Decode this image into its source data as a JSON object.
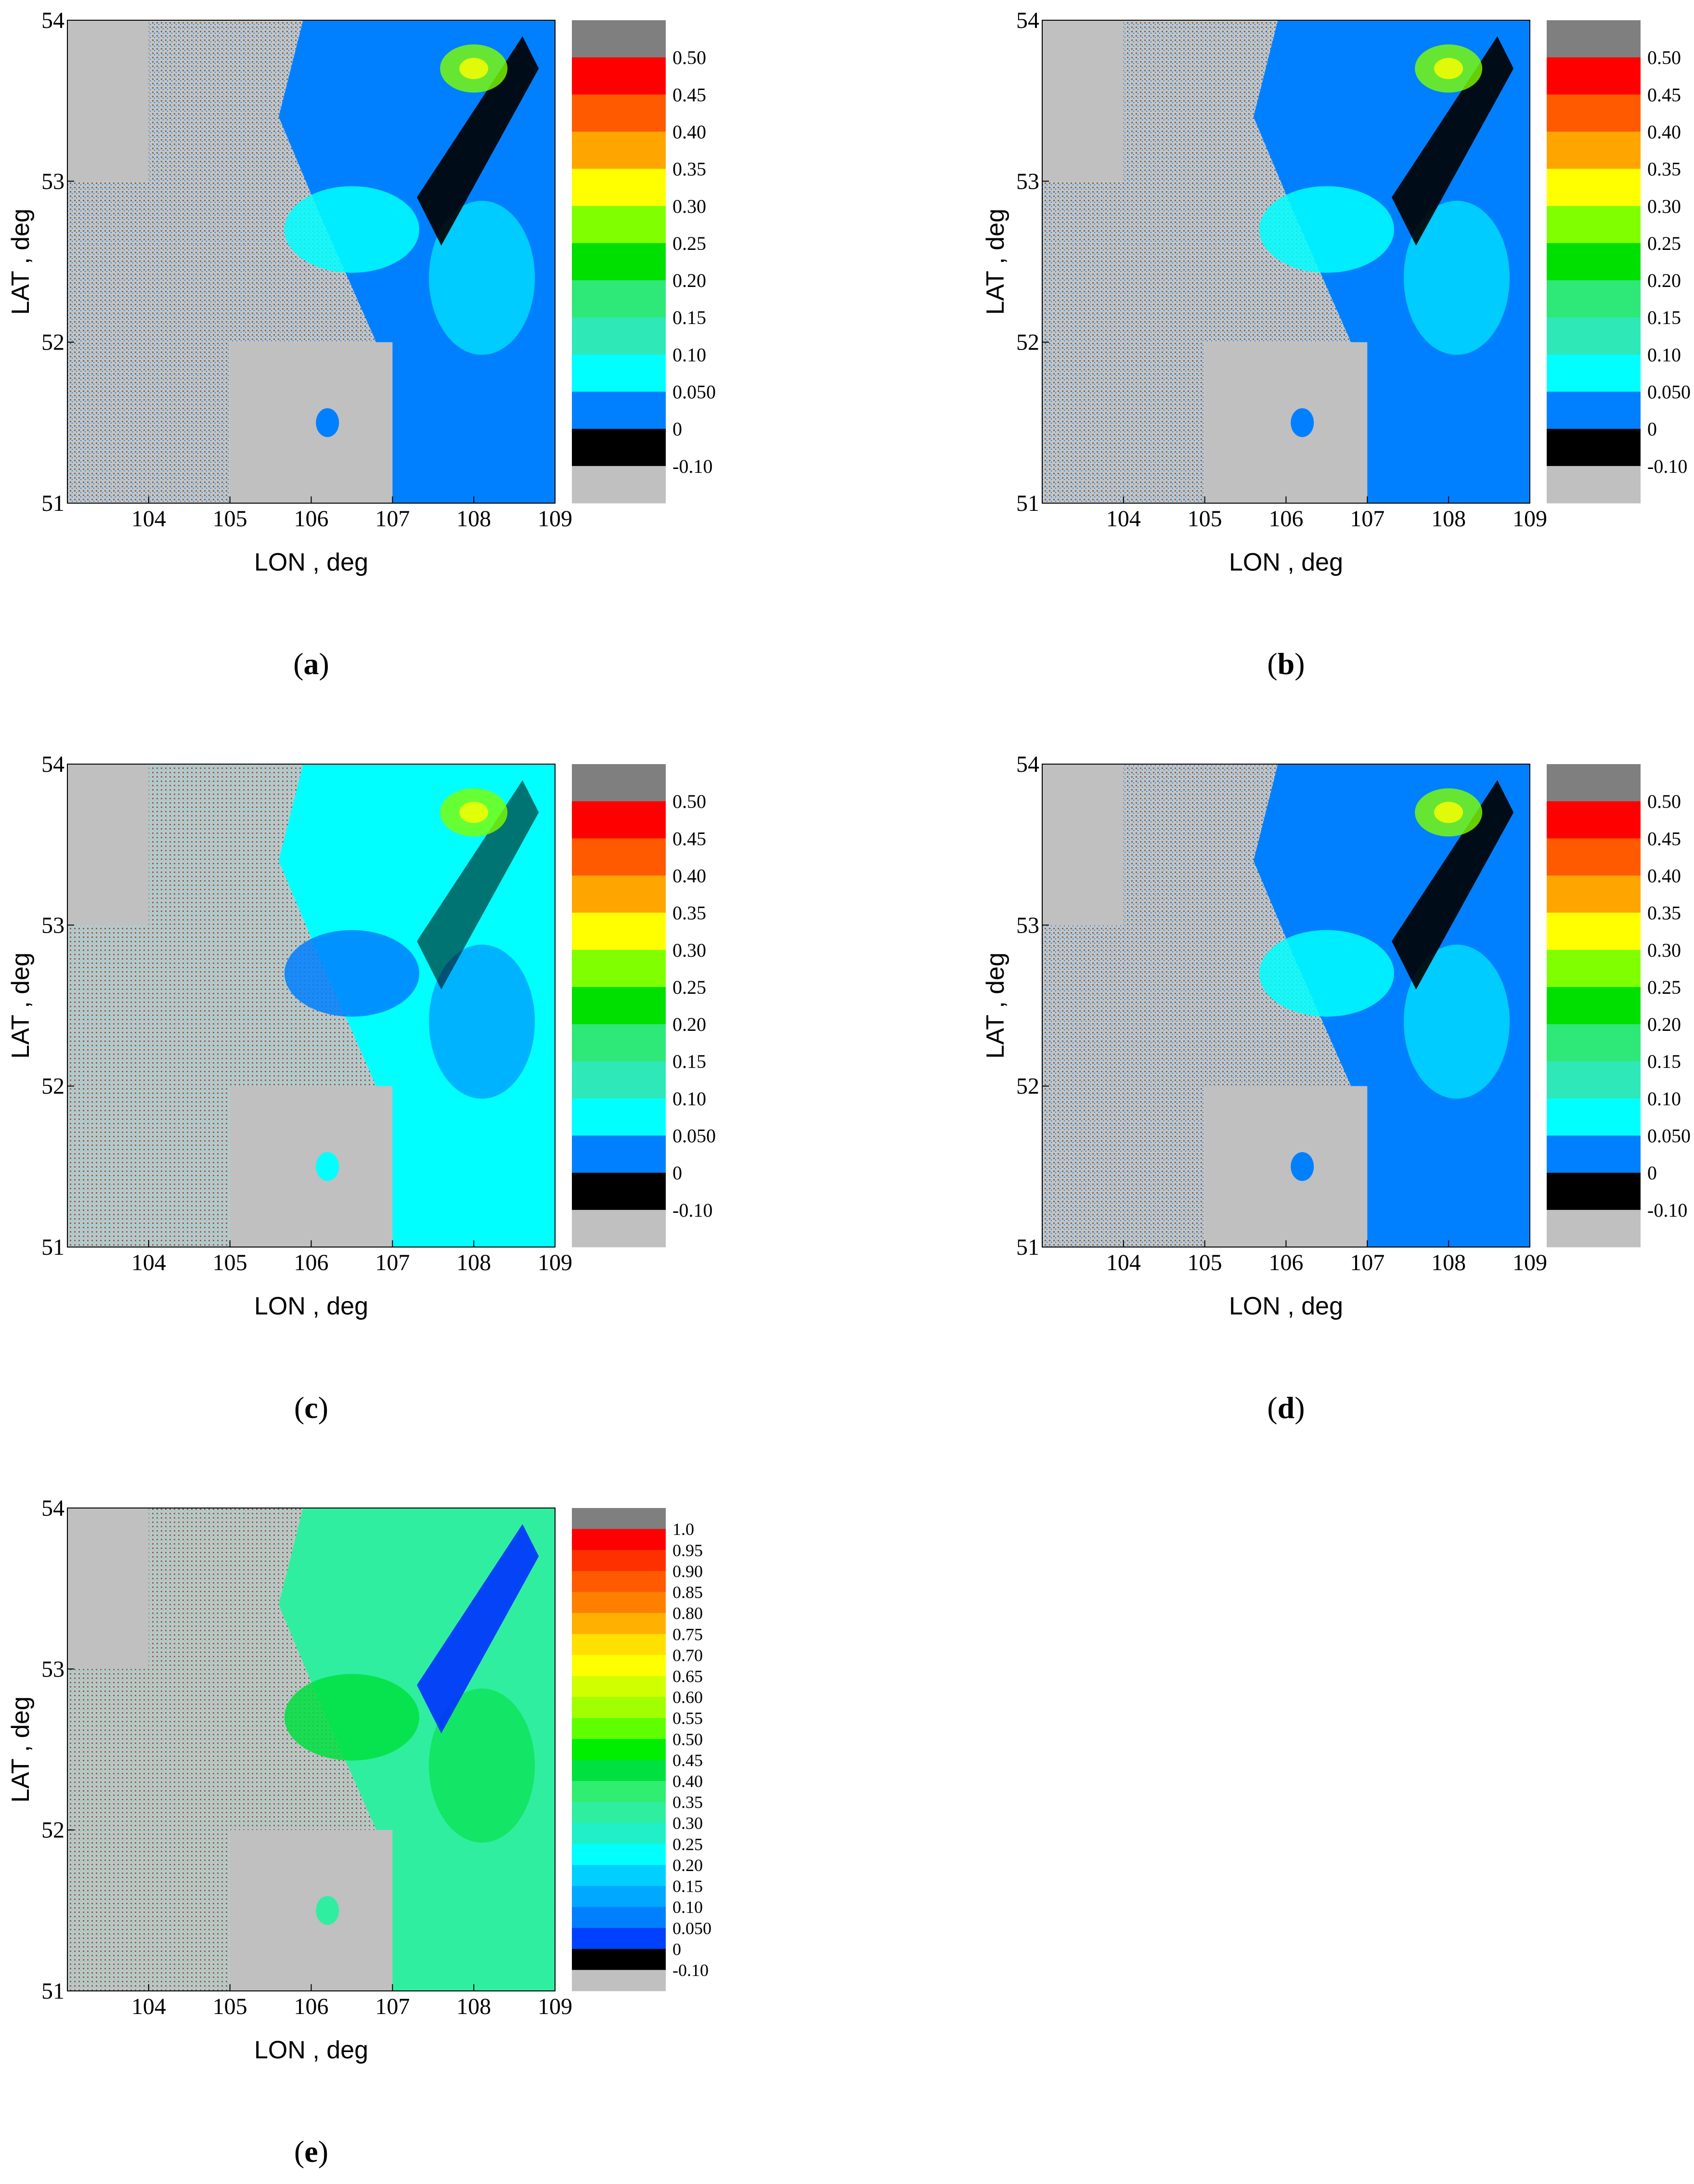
{
  "panels": [
    {
      "id": "a",
      "caption": "a",
      "xlabel": "LON , deg",
      "ylabel": "LAT , deg",
      "legend": [
        "0.50",
        "0.45",
        "0.40",
        "0.35",
        "0.30",
        "0.25",
        "0.20",
        "0.15",
        "0.10",
        "0.050",
        "0",
        "-0.10"
      ],
      "legend_colors": [
        "#7f7f7f",
        "#ff0000",
        "#ff5a00",
        "#ffa500",
        "#ffff00",
        "#80ff00",
        "#00e000",
        "#2ee878",
        "#2ee8b8",
        "#00ffff",
        "#0080ff",
        "#000000",
        "#c0c0c0"
      ]
    },
    {
      "id": "b",
      "caption": "b",
      "xlabel": "LON , deg",
      "ylabel": "LAT , deg",
      "legend": [
        "0.50",
        "0.45",
        "0.40",
        "0.35",
        "0.30",
        "0.25",
        "0.20",
        "0.15",
        "0.10",
        "0.050",
        "0",
        "-0.10"
      ],
      "legend_colors": [
        "#7f7f7f",
        "#ff0000",
        "#ff5a00",
        "#ffa500",
        "#ffff00",
        "#80ff00",
        "#00e000",
        "#2ee878",
        "#2ee8b8",
        "#00ffff",
        "#0080ff",
        "#000000",
        "#c0c0c0"
      ]
    },
    {
      "id": "c",
      "caption": "c",
      "xlabel": "LON , deg",
      "ylabel": "LAT , deg",
      "legend": [
        "0.50",
        "0.45",
        "0.40",
        "0.35",
        "0.30",
        "0.25",
        "0.20",
        "0.15",
        "0.10",
        "0.050",
        "0",
        "-0.10"
      ],
      "legend_colors": [
        "#7f7f7f",
        "#ff0000",
        "#ff5a00",
        "#ffa500",
        "#ffff00",
        "#80ff00",
        "#00e000",
        "#2ee878",
        "#2ee8b8",
        "#00ffff",
        "#0080ff",
        "#000000",
        "#c0c0c0"
      ]
    },
    {
      "id": "d",
      "caption": "d",
      "xlabel": "LON , deg",
      "ylabel": "LAT , deg",
      "legend": [
        "0.50",
        "0.45",
        "0.40",
        "0.35",
        "0.30",
        "0.25",
        "0.20",
        "0.15",
        "0.10",
        "0.050",
        "0",
        "-0.10"
      ],
      "legend_colors": [
        "#7f7f7f",
        "#ff0000",
        "#ff5a00",
        "#ffa500",
        "#ffff00",
        "#80ff00",
        "#00e000",
        "#2ee878",
        "#2ee8b8",
        "#00ffff",
        "#0080ff",
        "#000000",
        "#c0c0c0"
      ]
    },
    {
      "id": "e",
      "caption": "e",
      "xlabel": "LON , deg",
      "ylabel": "LAT , deg",
      "legend": [
        "1.0",
        "0.95",
        "0.90",
        "0.85",
        "0.80",
        "0.75",
        "0.70",
        "0.65",
        "0.60",
        "0.55",
        "0.50",
        "0.45",
        "0.40",
        "0.35",
        "0.30",
        "0.25",
        "0.20",
        "0.15",
        "0.10",
        "0.050",
        "0",
        "-0.10"
      ],
      "legend_colors": [
        "#7f7f7f",
        "#ff0000",
        "#ff3000",
        "#ff5a00",
        "#ff8000",
        "#ffb000",
        "#ffe000",
        "#ffff00",
        "#d0ff00",
        "#a0ff00",
        "#60ff00",
        "#00ee00",
        "#00e040",
        "#30ee70",
        "#30eea0",
        "#20f0c8",
        "#00ffff",
        "#00d0ff",
        "#00a8ff",
        "#0080ff",
        "#0040ff",
        "#000000",
        "#c0c0c0"
      ]
    }
  ],
  "chart_data": [
    {
      "panel": "a",
      "type": "heatmap",
      "x_ticks": [
        "104",
        "105",
        "106",
        "107",
        "108",
        "109"
      ],
      "y_ticks": [
        "51",
        "52",
        "53",
        "54"
      ],
      "xlim": [
        103,
        109
      ],
      "ylim": [
        51,
        54
      ],
      "legend_levels": [
        "-0.10",
        "0",
        "0.050",
        "0.10",
        "0.15",
        "0.20",
        "0.25",
        "0.30",
        "0.35",
        "0.40",
        "0.45",
        "0.50"
      ]
    },
    {
      "panel": "b",
      "type": "heatmap",
      "x_ticks": [
        "104",
        "105",
        "106",
        "107",
        "108",
        "109"
      ],
      "y_ticks": [
        "51",
        "52",
        "53",
        "54"
      ],
      "xlim": [
        103,
        109
      ],
      "ylim": [
        51,
        54
      ],
      "legend_levels": [
        "-0.10",
        "0",
        "0.050",
        "0.10",
        "0.15",
        "0.20",
        "0.25",
        "0.30",
        "0.35",
        "0.40",
        "0.45",
        "0.50"
      ]
    },
    {
      "panel": "c",
      "type": "heatmap",
      "x_ticks": [
        "104",
        "105",
        "106",
        "107",
        "108",
        "109"
      ],
      "y_ticks": [
        "51",
        "52",
        "53",
        "54"
      ],
      "xlim": [
        103,
        109
      ],
      "ylim": [
        51,
        54
      ],
      "legend_levels": [
        "-0.10",
        "0",
        "0.050",
        "0.10",
        "0.15",
        "0.20",
        "0.25",
        "0.30",
        "0.35",
        "0.40",
        "0.45",
        "0.50"
      ]
    },
    {
      "panel": "d",
      "type": "heatmap",
      "x_ticks": [
        "104",
        "105",
        "106",
        "107",
        "108",
        "109"
      ],
      "y_ticks": [
        "51",
        "52",
        "53",
        "54"
      ],
      "xlim": [
        103,
        109
      ],
      "ylim": [
        51,
        54
      ],
      "legend_levels": [
        "-0.10",
        "0",
        "0.050",
        "0.10",
        "0.15",
        "0.20",
        "0.25",
        "0.30",
        "0.35",
        "0.40",
        "0.45",
        "0.50"
      ]
    },
    {
      "panel": "e",
      "type": "heatmap",
      "x_ticks": [
        "104",
        "105",
        "106",
        "107",
        "108",
        "109"
      ],
      "y_ticks": [
        "51",
        "52",
        "53",
        "54"
      ],
      "xlim": [
        103,
        109
      ],
      "ylim": [
        51,
        54
      ],
      "legend_levels": [
        "-0.10",
        "0",
        "0.050",
        "0.10",
        "0.15",
        "0.20",
        "0.25",
        "0.30",
        "0.35",
        "0.40",
        "0.45",
        "0.50",
        "0.55",
        "0.60",
        "0.65",
        "0.70",
        "0.75",
        "0.80",
        "0.85",
        "0.90",
        "0.95",
        "1.0"
      ]
    }
  ]
}
